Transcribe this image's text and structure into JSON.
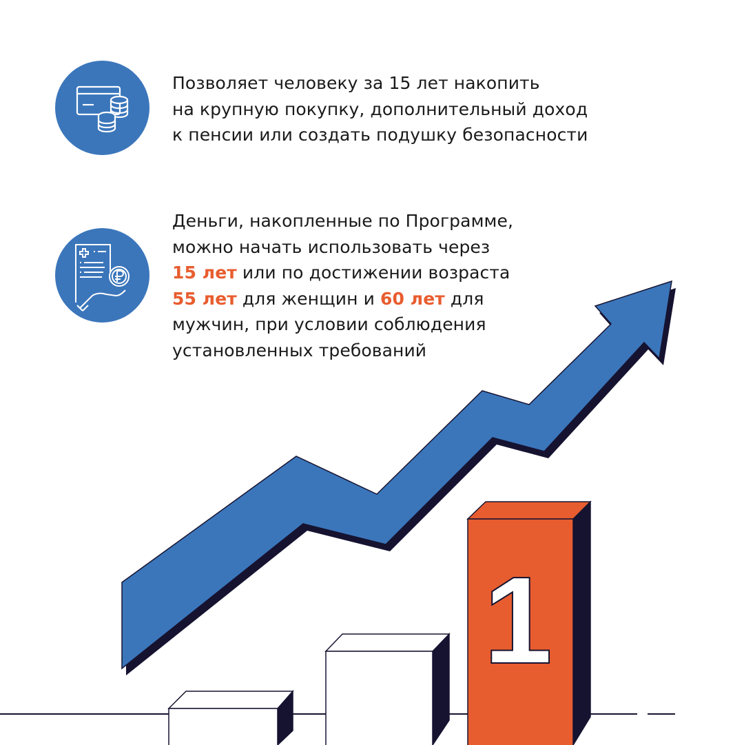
{
  "colors": {
    "accent_blue": "#3b76bb",
    "accent_orange": "#e85d2f",
    "dark": "#161330"
  },
  "block1": {
    "icon": "card-and-coins-icon",
    "lines": [
      "Позволяет человеку за 15 лет накопить",
      "на крупную покупку, дополнительный доход",
      "к пенсии или создать подушку безопасности"
    ]
  },
  "block2": {
    "icon": "document-hand-ruble-icon",
    "line1": "Деньги, накопленные по Программе,",
    "line2": "можно начать использовать через",
    "line3_hl": "15 лет",
    "line3_rest": " или по достижении возраста",
    "line4_hl1": "55 лет",
    "line4_mid": " для женщин и ",
    "line4_hl2": "60 лет",
    "line4_rest": " для",
    "line5": "мужчин, при условии соблюдения",
    "line6": "установленных требований"
  },
  "illustration": {
    "bar_numeral": "1"
  }
}
